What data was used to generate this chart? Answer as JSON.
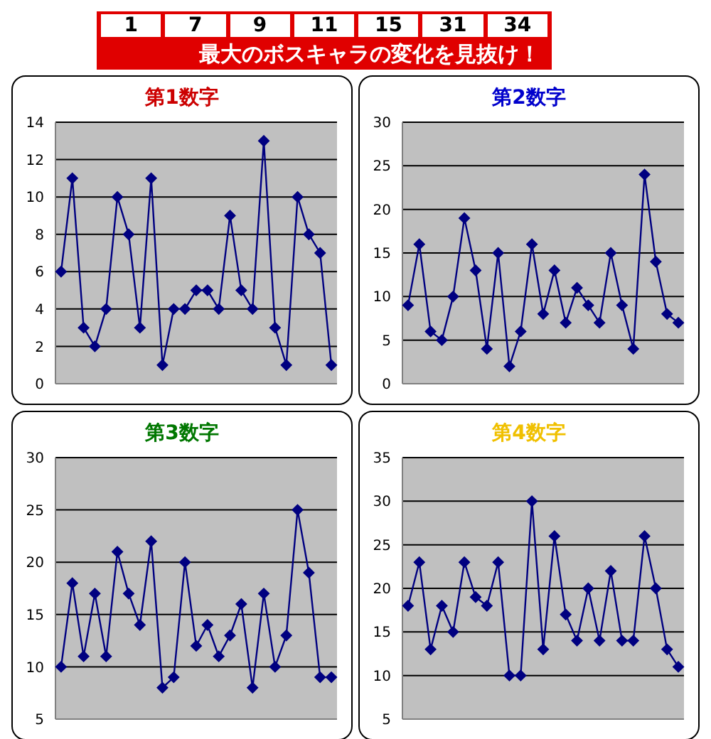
{
  "chart_data": [
    {
      "type": "other",
      "title": "最大のボスキャラの変化を見抜け！",
      "annotations": [
        "1",
        "7",
        "9",
        "11",
        "15",
        "31",
        "34"
      ]
    },
    {
      "type": "line",
      "title": "第1数字",
      "categories": [
        null,
        null,
        null,
        null,
        null,
        null,
        null,
        null,
        null,
        null,
        null,
        null,
        null,
        null,
        null,
        null,
        null,
        null,
        null,
        null,
        null,
        null,
        null,
        null,
        null
      ],
      "series": [
        {
          "color": "#000080",
          "values": [
            6,
            11,
            3,
            2,
            4,
            10,
            8,
            3,
            11,
            1,
            4,
            4,
            5,
            5,
            4,
            9,
            5,
            4,
            13,
            3,
            1,
            10,
            8,
            7,
            1
          ]
        }
      ],
      "ylim": [
        0,
        14
      ],
      "yticks": [
        0,
        2,
        4,
        6,
        8,
        10,
        12,
        14
      ],
      "grid": "y",
      "marker": "diamond",
      "tick_labels": "y"
    },
    {
      "type": "line",
      "title": "第2数字",
      "categories": [
        null,
        null,
        null,
        null,
        null,
        null,
        null,
        null,
        null,
        null,
        null,
        null,
        null,
        null,
        null,
        null,
        null,
        null,
        null,
        null,
        null,
        null,
        null,
        null,
        null
      ],
      "series": [
        {
          "color": "#000080",
          "values": [
            9,
            16,
            6,
            5,
            10,
            19,
            13,
            4,
            15,
            2,
            6,
            16,
            8,
            13,
            7,
            11,
            9,
            7,
            15,
            9,
            4,
            24,
            14,
            8,
            7
          ]
        }
      ],
      "ylim": [
        0,
        30
      ],
      "yticks": [
        0,
        5,
        10,
        15,
        20,
        25,
        30
      ],
      "grid": "y",
      "marker": "diamond",
      "tick_labels": "y"
    },
    {
      "type": "line",
      "title": "第3数字",
      "categories": [
        null,
        null,
        null,
        null,
        null,
        null,
        null,
        null,
        null,
        null,
        null,
        null,
        null,
        null,
        null,
        null,
        null,
        null,
        null,
        null,
        null,
        null,
        null,
        null,
        null
      ],
      "series": [
        {
          "color": "#000080",
          "values": [
            10,
            18,
            11,
            17,
            11,
            21,
            17,
            14,
            22,
            8,
            9,
            20,
            12,
            14,
            11,
            13,
            16,
            8,
            17,
            10,
            13,
            25,
            19,
            9,
            9
          ]
        }
      ],
      "ylim": [
        5,
        30
      ],
      "yticks": [
        5,
        10,
        15,
        20,
        25,
        30
      ],
      "grid": "y",
      "marker": "diamond",
      "tick_labels": "y"
    },
    {
      "type": "line",
      "title": "第4数字",
      "categories": [
        null,
        null,
        null,
        null,
        null,
        null,
        null,
        null,
        null,
        null,
        null,
        null,
        null,
        null,
        null,
        null,
        null,
        null,
        null,
        null,
        null,
        null,
        null,
        null,
        null
      ],
      "series": [
        {
          "color": "#000080",
          "values": [
            18,
            23,
            13,
            18,
            15,
            23,
            19,
            18,
            23,
            10,
            10,
            30,
            13,
            26,
            17,
            14,
            20,
            14,
            22,
            14,
            14,
            26,
            20,
            13,
            11
          ]
        }
      ],
      "ylim": [
        5,
        35
      ],
      "yticks": [
        5,
        10,
        15,
        20,
        25,
        30,
        35
      ],
      "grid": "y",
      "marker": "diamond",
      "tick_labels": "y"
    }
  ]
}
